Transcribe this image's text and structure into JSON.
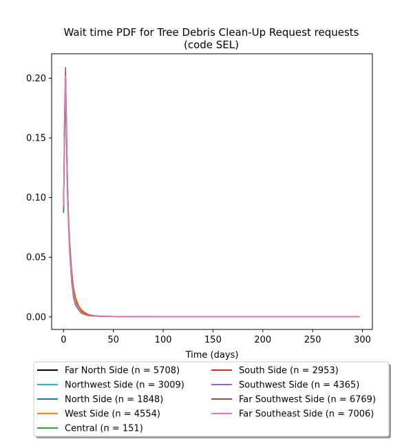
{
  "chart_data": {
    "type": "line",
    "title_lines": [
      "Wait time PDF for Tree Debris Clean-Up Request  requests",
      "(code SEL)"
    ],
    "xlabel": "Time (days)",
    "ylabel": "",
    "xlim": [
      -12,
      310
    ],
    "ylim": [
      -0.0105,
      0.2205
    ],
    "xticks": [
      0,
      50,
      100,
      150,
      200,
      250,
      300
    ],
    "yticks": [
      0.0,
      0.05,
      0.1,
      0.15,
      0.2
    ],
    "ytick_labels": [
      "0.00",
      "0.05",
      "0.10",
      "0.15",
      "0.20"
    ],
    "grid": false,
    "legend_position": "bottom-outside",
    "legend_columns": 2,
    "x": [
      0,
      1,
      2,
      3,
      4,
      5,
      6,
      8,
      10,
      12,
      15,
      18,
      21,
      25,
      30,
      35,
      40,
      50,
      60,
      80,
      100,
      150,
      200,
      250,
      297
    ],
    "series": [
      {
        "label": "Far North Side (n = 5708)",
        "color": "#000000",
        "values": [
          0.09,
          0.16,
          0.2,
          0.15,
          0.11,
          0.08,
          0.06,
          0.035,
          0.02,
          0.012,
          0.007,
          0.004,
          0.002,
          0.001,
          0.0008,
          0.0006,
          0.0005,
          0.0003,
          0.0002,
          0.0001,
          0.0001,
          0.0001,
          0.0001,
          0.0001,
          0.0001
        ]
      },
      {
        "label": "Northwest Side (n = 3009)",
        "color": "#17becf",
        "values": [
          0.088,
          0.15,
          0.19,
          0.14,
          0.1,
          0.075,
          0.058,
          0.034,
          0.019,
          0.012,
          0.007,
          0.004,
          0.002,
          0.001,
          0.0008,
          0.0006,
          0.0005,
          0.0003,
          0.0002,
          0.0001,
          0.0001,
          0.0001,
          0.0001,
          0.0001,
          0.0001
        ]
      },
      {
        "label": "North Side (n = 1848)",
        "color": "#1f77b4",
        "values": [
          0.087,
          0.16,
          0.2,
          0.15,
          0.11,
          0.08,
          0.062,
          0.036,
          0.021,
          0.013,
          0.008,
          0.004,
          0.002,
          0.001,
          0.0008,
          0.0006,
          0.0005,
          0.0003,
          0.0002,
          0.0001,
          0.0001,
          0.0001,
          0.0001,
          0.0001,
          0.0001
        ]
      },
      {
        "label": "West Side (n = 4554)",
        "color": "#ff7f0e",
        "values": [
          0.092,
          0.15,
          0.19,
          0.15,
          0.11,
          0.085,
          0.066,
          0.04,
          0.025,
          0.017,
          0.01,
          0.006,
          0.004,
          0.002,
          0.0012,
          0.0008,
          0.0006,
          0.0004,
          0.0003,
          0.0002,
          0.0001,
          0.0001,
          0.0001,
          0.0001,
          0.0001
        ]
      },
      {
        "label": "Central (n = 151)",
        "color": "#2ca02c",
        "values": [
          0.09,
          0.15,
          0.19,
          0.14,
          0.1,
          0.075,
          0.055,
          0.03,
          0.016,
          0.01,
          0.006,
          0.003,
          0.002,
          0.001,
          0.0007,
          0.0005,
          0.0004,
          0.0002,
          0.0002,
          0.0001,
          0.0001,
          0.0001,
          0.0001,
          0.0001,
          0.0001
        ]
      },
      {
        "label": "South Side (n = 2953)",
        "color": "#d62728",
        "values": [
          0.094,
          0.16,
          0.2,
          0.15,
          0.11,
          0.082,
          0.062,
          0.038,
          0.022,
          0.014,
          0.008,
          0.005,
          0.003,
          0.0015,
          0.001,
          0.0007,
          0.0005,
          0.0003,
          0.0002,
          0.0001,
          0.0001,
          0.0001,
          0.0001,
          0.0001,
          0.0001
        ]
      },
      {
        "label": "Southwest Side (n = 4365)",
        "color": "#9467bd",
        "values": [
          0.092,
          0.17,
          0.205,
          0.15,
          0.11,
          0.08,
          0.06,
          0.036,
          0.021,
          0.013,
          0.008,
          0.004,
          0.002,
          0.001,
          0.0008,
          0.0006,
          0.0005,
          0.0003,
          0.0002,
          0.0001,
          0.0001,
          0.0001,
          0.0001,
          0.0001,
          0.0001
        ]
      },
      {
        "label": "Far Southwest Side (n = 6769)",
        "color": "#8c564b",
        "values": [
          0.095,
          0.17,
          0.209,
          0.16,
          0.11,
          0.08,
          0.06,
          0.034,
          0.019,
          0.012,
          0.007,
          0.004,
          0.002,
          0.001,
          0.0008,
          0.0006,
          0.0005,
          0.0003,
          0.0002,
          0.0001,
          0.0001,
          0.0001,
          0.0001,
          0.0001,
          0.0001
        ]
      },
      {
        "label": "Far Southeast Side (n = 7006)",
        "color": "#e377c2",
        "values": [
          0.093,
          0.16,
          0.202,
          0.15,
          0.11,
          0.078,
          0.058,
          0.033,
          0.019,
          0.012,
          0.007,
          0.004,
          0.002,
          0.001,
          0.0008,
          0.0006,
          0.0005,
          0.0003,
          0.0002,
          0.0001,
          0.0001,
          0.0001,
          0.0001,
          0.0001,
          0.0001
        ]
      }
    ]
  }
}
